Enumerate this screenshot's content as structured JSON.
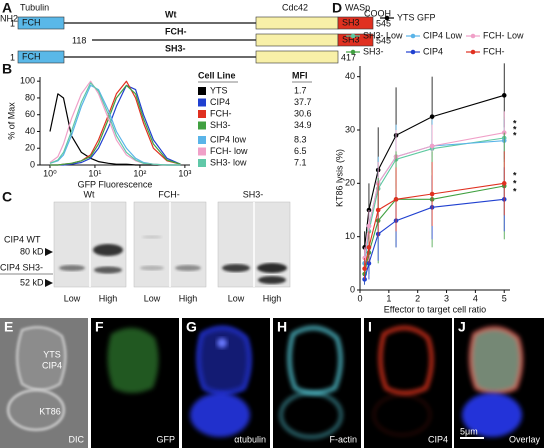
{
  "panel_a": {
    "letter": "A",
    "nh2": "NH2",
    "cooh": "COOH",
    "domains": [
      "Tubulin",
      "Cdc42",
      "WASp"
    ],
    "box_labels": [
      "FCH",
      "SH3"
    ],
    "constructs": [
      {
        "name": "Wt",
        "start": 1,
        "end": 545
      },
      {
        "name": "FCH-",
        "start": 118,
        "end": 545
      },
      {
        "name": "SH3-",
        "start": 1,
        "end": 417
      }
    ]
  },
  "chart_data": [
    {
      "type": "line",
      "panel": "B",
      "x_label": "GFP Fluorescence",
      "y_label": "% of Max",
      "xscale": "log",
      "xlim": [
        0.6,
        1300
      ],
      "xticks": [
        {
          "value": 1,
          "label": "10⁰"
        },
        {
          "value": 10,
          "label": "10¹"
        },
        {
          "value": 100,
          "label": "10²"
        },
        {
          "value": 1000,
          "label": "10³"
        }
      ],
      "ylim": [
        0,
        105
      ],
      "yticks": [
        0,
        20,
        40,
        60,
        80,
        100
      ],
      "x": [
        1,
        1.5,
        2,
        3,
        5,
        8,
        12,
        20,
        30,
        50,
        80,
        120,
        200,
        400,
        800
      ],
      "legend_headers": [
        "Cell Line",
        "MFI"
      ],
      "mfi": [
        1.7,
        37.7,
        30.6,
        34.9,
        8.3,
        6.5,
        7.1
      ],
      "series": [
        {
          "name": "YTS",
          "color": "#000000",
          "values": [
            40,
            85,
            80,
            35,
            15,
            8,
            4,
            2,
            1,
            1,
            0,
            0,
            0,
            0,
            0
          ]
        },
        {
          "name": "CIP4",
          "color": "#2040d0",
          "values": [
            0,
            0,
            0,
            1,
            3,
            8,
            20,
            45,
            70,
            95,
            90,
            60,
            30,
            8,
            1
          ]
        },
        {
          "name": "FCH-",
          "color": "#e03020",
          "values": [
            0,
            0,
            1,
            2,
            5,
            12,
            30,
            60,
            85,
            100,
            80,
            50,
            20,
            5,
            1
          ]
        },
        {
          "name": "SH3-",
          "color": "#40a040",
          "values": [
            0,
            0,
            1,
            2,
            5,
            10,
            25,
            55,
            80,
            95,
            85,
            55,
            25,
            6,
            1
          ]
        },
        {
          "name": "CIP4 low",
          "color": "#5ab4e8",
          "values": [
            2,
            5,
            12,
            35,
            70,
            95,
            90,
            65,
            40,
            20,
            8,
            3,
            1,
            0,
            0
          ]
        },
        {
          "name": "FCH- low",
          "color": "#f0a0c8",
          "values": [
            3,
            10,
            25,
            55,
            85,
            100,
            85,
            55,
            30,
            12,
            5,
            2,
            1,
            0,
            0
          ]
        },
        {
          "name": "SH3- low",
          "color": "#60c8a8",
          "values": [
            2,
            6,
            15,
            40,
            75,
            98,
            88,
            60,
            35,
            15,
            6,
            2,
            1,
            0,
            0
          ]
        }
      ]
    },
    {
      "type": "line",
      "panel": "D",
      "x_label": "Effector to target cell ratio",
      "y_label": "KT86 lysis (%)",
      "xlim": [
        0,
        5.2
      ],
      "xticks": [
        0,
        1,
        2,
        3,
        4,
        5
      ],
      "ylim": [
        0,
        42
      ],
      "yticks": [
        0,
        10,
        20,
        30,
        40
      ],
      "x": [
        0.16,
        0.31,
        0.63,
        1.25,
        2.5,
        5
      ],
      "annotations": [
        "*",
        "*",
        "*",
        "*",
        "*",
        "*"
      ],
      "series": [
        {
          "name": "YTS GFP",
          "color": "#000000",
          "values": [
            8,
            15,
            22.5,
            29,
            32.5,
            36.5
          ],
          "errors": [
            3,
            5,
            8,
            9,
            7.5,
            6
          ]
        },
        {
          "name": "SH3- Low",
          "color": "#5ec9a0",
          "values": [
            5,
            11,
            19,
            24.5,
            26.5,
            28.5
          ],
          "errors": [
            2,
            3,
            4,
            5,
            4,
            4
          ]
        },
        {
          "name": "CIP4 Low",
          "color": "#5ab4e8",
          "values": [
            5,
            12,
            20,
            25,
            27,
            28
          ],
          "errors": [
            2,
            3,
            5,
            6,
            5,
            4
          ]
        },
        {
          "name": "FCH- Low",
          "color": "#f0a0c8",
          "values": [
            6,
            12,
            20,
            25,
            27,
            29.5
          ],
          "errors": [
            2,
            3,
            4,
            5,
            4,
            4
          ]
        },
        {
          "name": "SH3-",
          "color": "#40a040",
          "values": [
            3,
            7,
            13,
            17,
            17,
            19.5
          ],
          "errors": [
            2,
            4,
            8,
            9,
            9,
            10
          ]
        },
        {
          "name": "CIP4",
          "color": "#2040d0",
          "values": [
            2,
            5,
            10.5,
            13,
            15.5,
            17
          ],
          "errors": [
            1,
            3,
            5,
            5,
            6,
            6
          ]
        },
        {
          "name": "FCH-",
          "color": "#e03020",
          "values": [
            4,
            8,
            15,
            17,
            18,
            20
          ],
          "errors": [
            2,
            3,
            5,
            6,
            6,
            6
          ]
        }
      ]
    }
  ],
  "panel_c": {
    "letter": "C",
    "blots": [
      "Wt",
      "FCH-",
      "SH3-"
    ],
    "lanes": [
      "Low",
      "High"
    ],
    "markers": [
      "CIP4 WT",
      "80 kD",
      "CIP4 SH3-",
      "52 kD"
    ]
  },
  "micrographs": [
    {
      "letter": "E",
      "label": "DIC",
      "annotations": [
        "YTS",
        "CIP4",
        "KT86"
      ]
    },
    {
      "letter": "F",
      "label": "GFP"
    },
    {
      "letter": "G",
      "label": "αtubulin"
    },
    {
      "letter": "H",
      "label": "F-actin"
    },
    {
      "letter": "I",
      "label": "CIP4"
    },
    {
      "letter": "J",
      "label": "Overlay",
      "scale": "5μm"
    }
  ]
}
